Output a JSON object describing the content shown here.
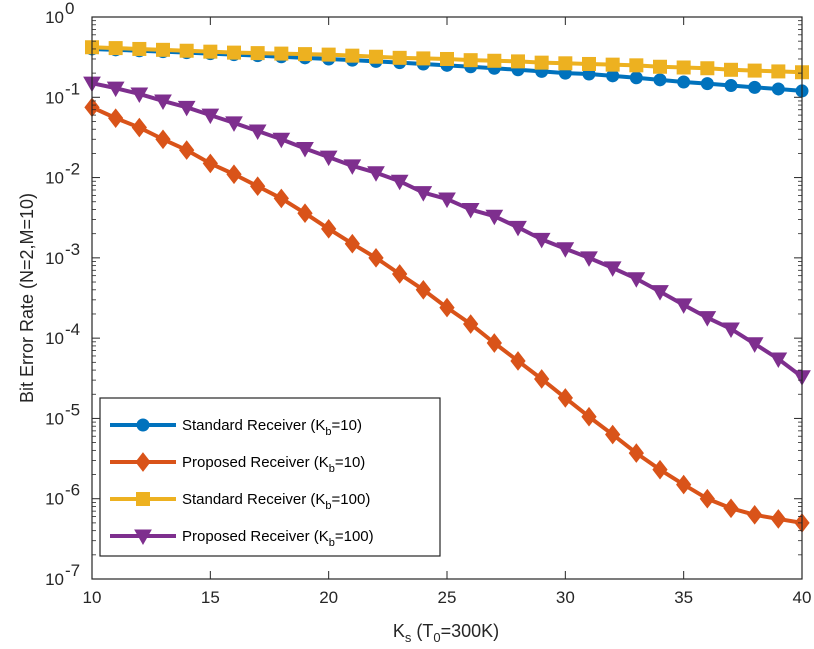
{
  "chart_data": {
    "type": "line",
    "title": "",
    "xlabel": {
      "base": "K",
      "sub": "s",
      "rest_a": " (T",
      "rest_sub": "0",
      "rest_b": "=300K)"
    },
    "ylabel": "Bit Error Rate (N=2,M=10)",
    "x_scale": "linear",
    "y_scale": "log",
    "xlim": [
      10,
      40
    ],
    "ylim": [
      1e-07,
      1
    ],
    "x_ticks": [
      10,
      15,
      20,
      25,
      30,
      35,
      40
    ],
    "x_tick_labels": [
      "10",
      "15",
      "20",
      "25",
      "30",
      "35",
      "40"
    ],
    "y_ticks": [
      1e-07,
      1e-06,
      1e-05,
      0.0001,
      0.001,
      0.01,
      0.1,
      1
    ],
    "y_tick_labels": [
      {
        "base": "10",
        "exp": "-7"
      },
      {
        "base": "10",
        "exp": "-6"
      },
      {
        "base": "10",
        "exp": "-5"
      },
      {
        "base": "10",
        "exp": "-4"
      },
      {
        "base": "10",
        "exp": "-3"
      },
      {
        "base": "10",
        "exp": "-2"
      },
      {
        "base": "10",
        "exp": "-1"
      },
      {
        "base": "10",
        "exp": "0"
      }
    ],
    "grid": false,
    "legend_position": "bottom-left",
    "x": [
      10,
      11,
      12,
      13,
      14,
      15,
      16,
      17,
      18,
      19,
      20,
      21,
      22,
      23,
      24,
      25,
      26,
      27,
      28,
      29,
      30,
      31,
      32,
      33,
      34,
      35,
      36,
      37,
      38,
      39,
      40
    ],
    "series": [
      {
        "name": "Standard Receiver (K",
        "name_sub": "b",
        "name_rest": "=10)",
        "color": "#0072BD",
        "marker": "circle",
        "values": [
          0.4,
          0.39,
          0.38,
          0.37,
          0.36,
          0.35,
          0.34,
          0.33,
          0.32,
          0.31,
          0.3,
          0.29,
          0.28,
          0.27,
          0.26,
          0.25,
          0.24,
          0.23,
          0.22,
          0.21,
          0.2,
          0.195,
          0.185,
          0.175,
          0.165,
          0.155,
          0.148,
          0.14,
          0.133,
          0.127,
          0.12
        ]
      },
      {
        "name": "Proposed Receiver (K",
        "name_sub": "b",
        "name_rest": "=10)",
        "color": "#D95319",
        "marker": "diamond",
        "values": [
          0.075,
          0.055,
          0.042,
          0.03,
          0.022,
          0.015,
          0.011,
          0.0078,
          0.0055,
          0.0036,
          0.0023,
          0.0015,
          0.001,
          0.00063,
          0.0004,
          0.00024,
          0.00015,
          8.7e-05,
          5.2e-05,
          3.1e-05,
          1.8e-05,
          1.05e-05,
          6.3e-06,
          3.7e-06,
          2.3e-06,
          1.5e-06,
          1e-06,
          7.6e-07,
          6.3e-07,
          5.6e-07,
          5e-07
        ]
      },
      {
        "name": "Standard Receiver (K",
        "name_sub": "b",
        "name_rest": "=100)",
        "color": "#EDB120",
        "marker": "square",
        "values": [
          0.42,
          0.41,
          0.4,
          0.39,
          0.38,
          0.37,
          0.36,
          0.355,
          0.35,
          0.345,
          0.34,
          0.33,
          0.32,
          0.31,
          0.305,
          0.3,
          0.29,
          0.285,
          0.28,
          0.27,
          0.265,
          0.26,
          0.255,
          0.25,
          0.24,
          0.235,
          0.23,
          0.22,
          0.215,
          0.21,
          0.205
        ]
      },
      {
        "name": "Proposed Receiver (K",
        "name_sub": "b",
        "name_rest": "=100)",
        "color": "#7E2F8E",
        "marker": "triangle-down",
        "values": [
          0.15,
          0.13,
          0.11,
          0.09,
          0.075,
          0.06,
          0.048,
          0.038,
          0.03,
          0.023,
          0.018,
          0.014,
          0.0115,
          0.009,
          0.0065,
          0.0054,
          0.004,
          0.0033,
          0.0024,
          0.0017,
          0.0013,
          0.001,
          0.00075,
          0.00055,
          0.00038,
          0.00026,
          0.00018,
          0.00013,
          8.5e-05,
          5.5e-05,
          3.3e-05
        ]
      }
    ]
  }
}
